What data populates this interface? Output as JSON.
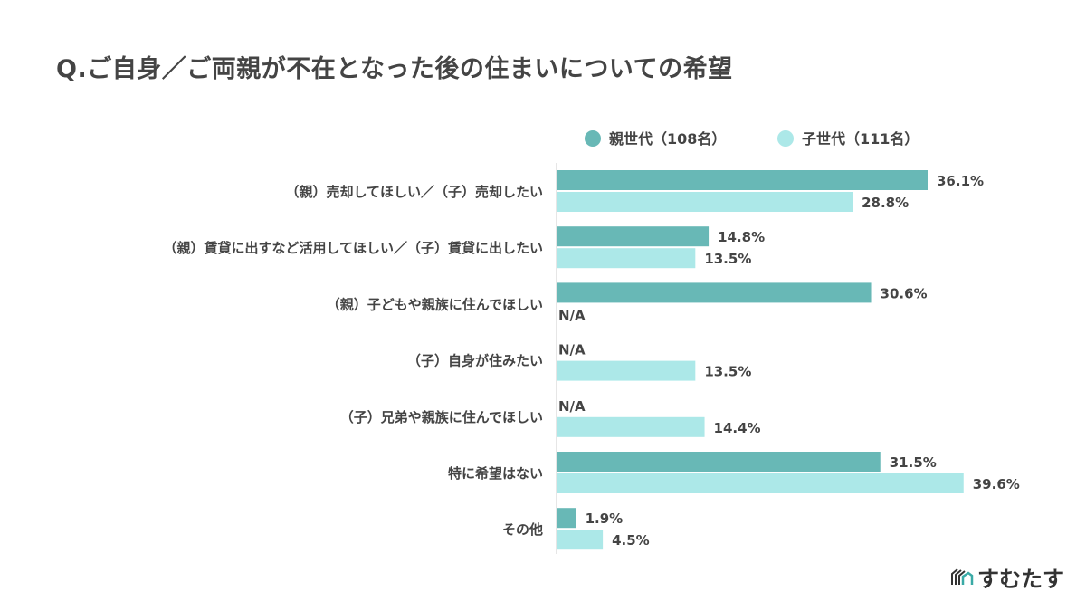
{
  "chart_data": {
    "type": "bar",
    "orientation": "horizontal",
    "title": "Q.ご自身／ご両親が不在となった後の住まいについての希望",
    "categories": [
      "（親）売却してほしい／（子）売却したい",
      "（親）賃貸に出すなど活用してほしい／（子）賃貸に出したい",
      "（親）子どもや親族に住んでほしい",
      "（子）自身が住みたい",
      "（子）兄弟や親族に住んでほしい",
      "特に希望はない",
      "その他"
    ],
    "series": [
      {
        "name": "親世代（108名）",
        "color": "#68b8b6",
        "values": [
          36.1,
          14.8,
          30.6,
          null,
          null,
          31.5,
          1.9
        ]
      },
      {
        "name": "子世代（111名）",
        "color": "#ace8e8",
        "values": [
          28.8,
          13.5,
          null,
          13.5,
          14.4,
          39.6,
          4.5
        ]
      }
    ],
    "missing_label": "N/A",
    "value_suffix": "%",
    "xlim": [
      0,
      40
    ],
    "legend": "top-right",
    "grid": false
  },
  "logo": {
    "text": "すむたす"
  }
}
